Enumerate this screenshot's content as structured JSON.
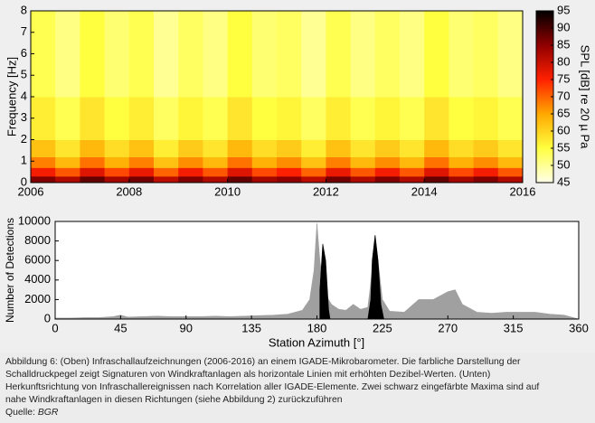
{
  "chart_data": [
    {
      "type": "heatmap",
      "ylabel": "Frequency [Hz]",
      "xlim": [
        2006,
        2016
      ],
      "xticks": [
        2006,
        2008,
        2010,
        2012,
        2014,
        2016
      ],
      "ylim": [
        0,
        8
      ],
      "yticks": [
        0,
        1,
        2,
        3,
        4,
        5,
        6,
        7,
        8
      ],
      "x_edges": [
        2006,
        2006.5,
        2007,
        2007.5,
        2008,
        2008.5,
        2009,
        2009.5,
        2010,
        2010.5,
        2011,
        2011.5,
        2012,
        2012.5,
        2013,
        2013.5,
        2014,
        2014.5,
        2015,
        2015.5,
        2016
      ],
      "y_edges": [
        0,
        0.3,
        0.7,
        1.2,
        2,
        4,
        8
      ],
      "z": [
        [
          86,
          82,
          88,
          83,
          87,
          81,
          86,
          82,
          88,
          83,
          85,
          81,
          87,
          82,
          86,
          82,
          88,
          83,
          86,
          82
        ],
        [
          76,
          71,
          78,
          72,
          77,
          70,
          76,
          71,
          78,
          72,
          75,
          70,
          77,
          71,
          76,
          71,
          78,
          72,
          76,
          71
        ],
        [
          68,
          63,
          69,
          64,
          68,
          62,
          67,
          63,
          69,
          64,
          67,
          62,
          68,
          63,
          67,
          63,
          69,
          64,
          67,
          63
        ],
        [
          62,
          58,
          63,
          59,
          62,
          57,
          61,
          58,
          63,
          59,
          61,
          57,
          62,
          58,
          61,
          58,
          63,
          59,
          61,
          58
        ],
        [
          57,
          54,
          58,
          55,
          57,
          53,
          56,
          54,
          58,
          55,
          56,
          53,
          57,
          54,
          56,
          54,
          58,
          55,
          56,
          54
        ],
        [
          54,
          51,
          55,
          52,
          54,
          50,
          53,
          51,
          55,
          52,
          53,
          50,
          54,
          51,
          53,
          51,
          55,
          52,
          53,
          51
        ]
      ],
      "colorbar": {
        "label": "SPL [dB] re 20 µ Pa",
        "lim": [
          45,
          95
        ],
        "ticks": [
          45,
          50,
          55,
          60,
          65,
          70,
          75,
          80,
          85,
          90,
          95
        ],
        "colors": [
          "#ffffe8",
          "#ffff40",
          "#ffa800",
          "#ff2000",
          "#900000",
          "#000000"
        ]
      }
    },
    {
      "type": "area",
      "xlabel": "Station Azimuth [°]",
      "ylabel": "Number of Detections",
      "xlim": [
        0,
        360
      ],
      "xticks": [
        0,
        45,
        90,
        135,
        180,
        225,
        270,
        315,
        360
      ],
      "ylim": [
        0,
        10000
      ],
      "yticks": [
        0,
        2000,
        4000,
        6000,
        8000,
        10000
      ],
      "series": [
        {
          "color": "#a0a0a0",
          "x": [
            0,
            10,
            20,
            30,
            40,
            45,
            50,
            60,
            70,
            80,
            90,
            100,
            110,
            120,
            130,
            140,
            150,
            160,
            170,
            175,
            178,
            180,
            182,
            185,
            188,
            190,
            195,
            200,
            205,
            210,
            215,
            218,
            220,
            222,
            225,
            230,
            240,
            250,
            260,
            270,
            275,
            280,
            290,
            300,
            310,
            320,
            330,
            340,
            350,
            360
          ],
          "values": [
            100,
            100,
            150,
            150,
            250,
            400,
            200,
            250,
            300,
            250,
            250,
            250,
            300,
            250,
            300,
            350,
            400,
            500,
            900,
            2000,
            5000,
            9800,
            6000,
            3000,
            2000,
            1500,
            1000,
            900,
            1500,
            1000,
            1200,
            5000,
            8600,
            6000,
            2000,
            800,
            700,
            2000,
            2000,
            2800,
            3000,
            1500,
            700,
            600,
            700,
            700,
            700,
            500,
            400,
            0
          ]
        },
        {
          "color": "#000000",
          "x": [
            182,
            184,
            186,
            188,
            189,
            200,
            215,
            217,
            218,
            220,
            222,
            224,
            226
          ],
          "values": [
            3000,
            7700,
            6000,
            1000,
            0,
            null,
            0,
            2000,
            6000,
            8600,
            6000,
            1500,
            0
          ]
        }
      ]
    }
  ],
  "caption": {
    "lines": [
      "Abbildung 6: (Oben) Infraschallaufzeichnungen (2006-2016) an einem IGADE-Mikrobarometer. Die farbliche Darstellung der",
      "Schalldruckpegel zeigt Signaturen von Windkraftanlagen als horizontale Linien mit erhöhten Dezibel-Werten. (Unten)",
      "Herkunftsrichtung von Infraschallereignissen nach Korrelation aller IGADE-Elemente. Zwei schwarz eingefärbte Maxima sind auf",
      "nahe Windkraftanlagen in diesen Richtungen (siehe Abbildung 2) zurückzuführen"
    ],
    "source_label": "Quelle:",
    "source": "BGR"
  }
}
